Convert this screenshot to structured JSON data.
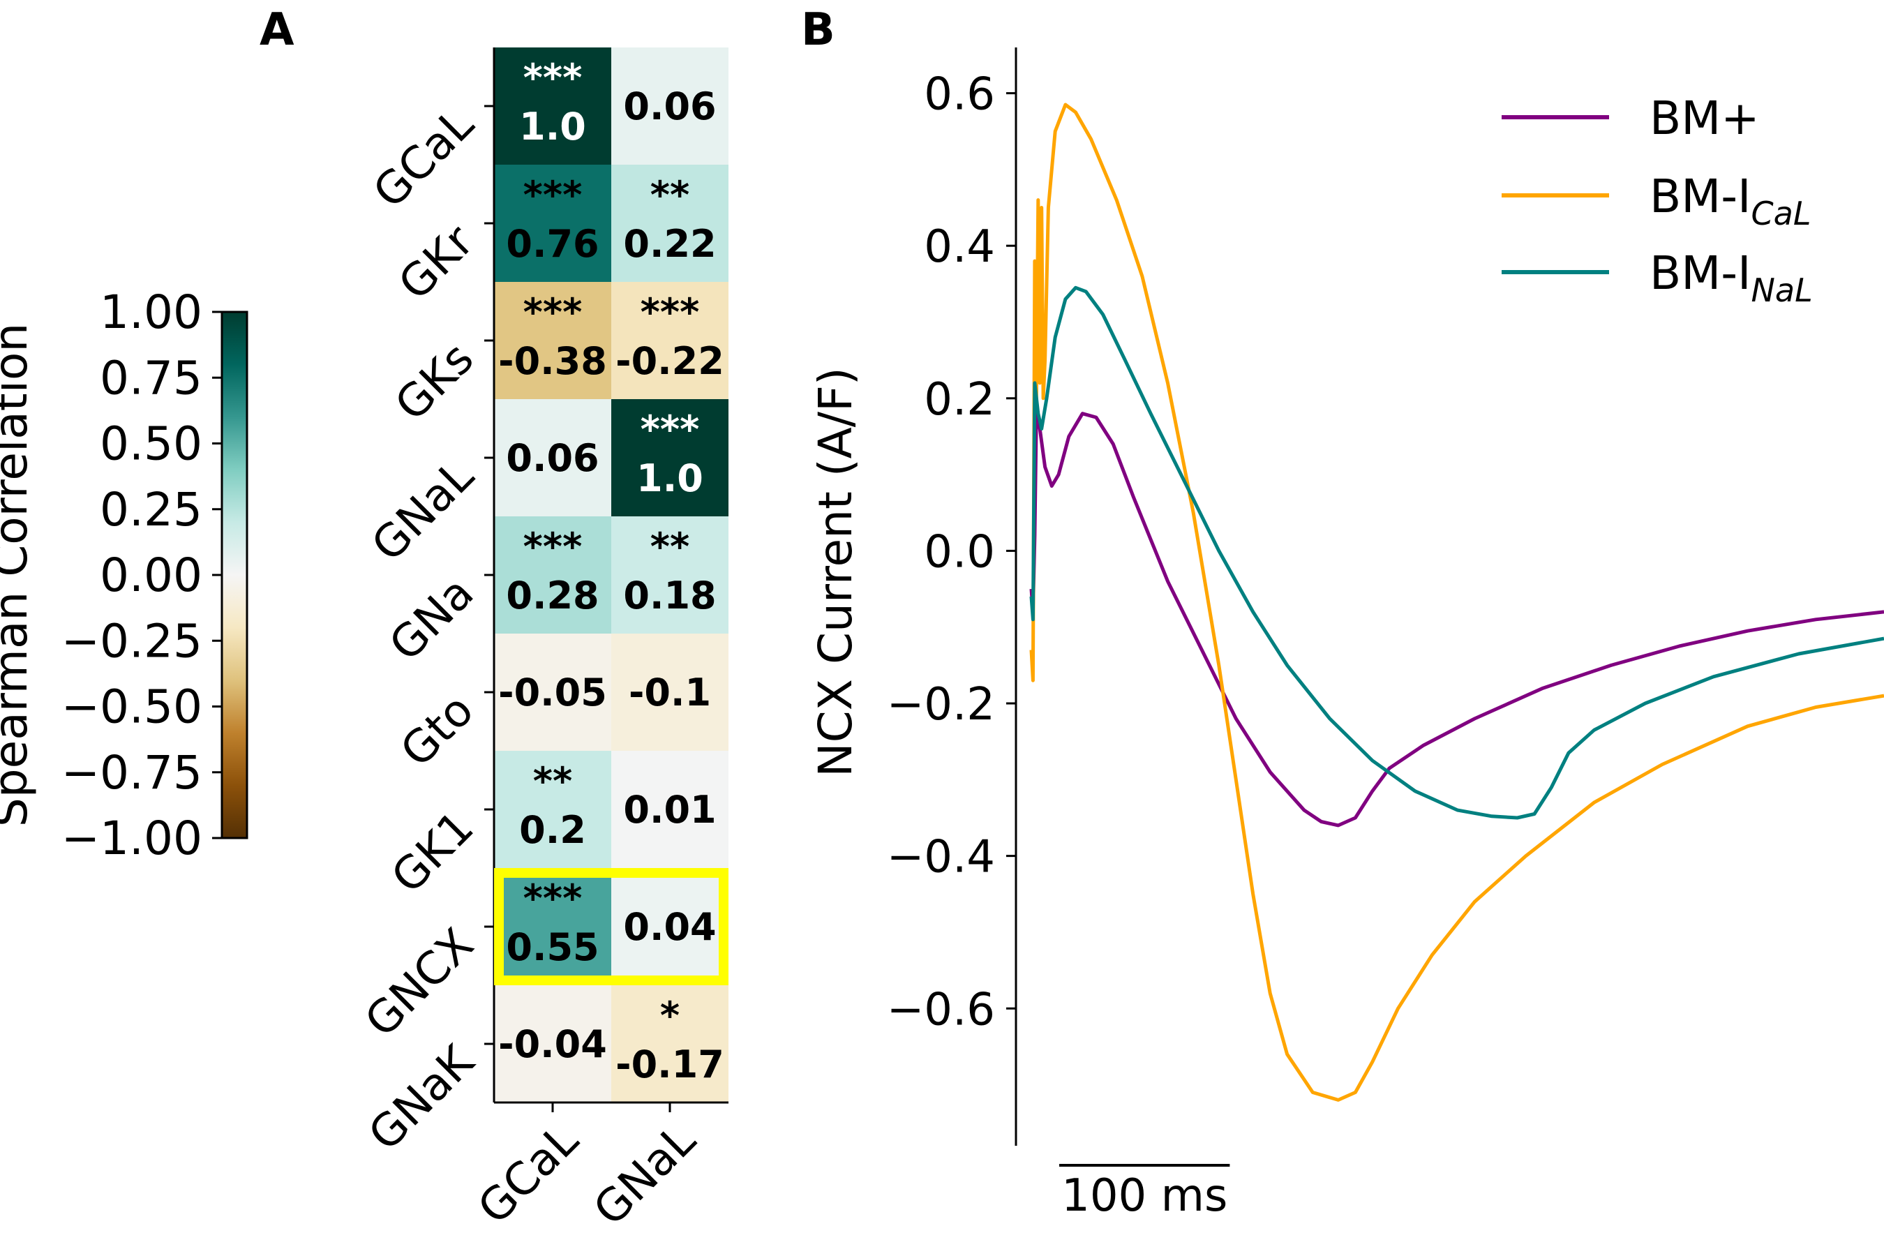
{
  "panels": {
    "a": "A",
    "b": "B"
  },
  "colors": {
    "bm_plus": "#800080",
    "bm_ical": "#FFA500",
    "bm_inal": "#008080",
    "highlight": "#FFFF00",
    "text_dark": "#000000",
    "text_light": "#FFFFFF"
  },
  "chart_data": [
    {
      "type": "heatmap",
      "colormap": "BrBG",
      "rows": [
        "GCaL",
        "GKr",
        "GKs",
        "GNaL",
        "GNa",
        "Gto",
        "GK1",
        "GNCX",
        "GNaK"
      ],
      "columns": [
        "GCaL",
        "GNaL"
      ],
      "values": [
        [
          1.0,
          0.06
        ],
        [
          0.76,
          0.22
        ],
        [
          -0.38,
          -0.22
        ],
        [
          0.06,
          1.0
        ],
        [
          0.28,
          0.18
        ],
        [
          -0.05,
          -0.1
        ],
        [
          0.2,
          0.01
        ],
        [
          0.55,
          0.04
        ],
        [
          -0.04,
          -0.17
        ]
      ],
      "labels": [
        [
          "1.0",
          "0.06"
        ],
        [
          "0.76",
          "0.22"
        ],
        [
          "-0.38",
          "-0.22"
        ],
        [
          "0.06",
          "1.0"
        ],
        [
          "0.28",
          "0.18"
        ],
        [
          "-0.05",
          "-0.1"
        ],
        [
          "0.2",
          "0.01"
        ],
        [
          "0.55",
          "0.04"
        ],
        [
          "-0.04",
          "-0.17"
        ]
      ],
      "significance": [
        [
          "***",
          ""
        ],
        [
          "***",
          "**"
        ],
        [
          "***",
          "***"
        ],
        [
          "",
          "***"
        ],
        [
          "***",
          "**"
        ],
        [
          "",
          ""
        ],
        [
          "**",
          ""
        ],
        [
          "***",
          ""
        ],
        [
          "",
          "*"
        ]
      ],
      "highlighted_row": "GNCX",
      "colorbar": {
        "label": "Spearman Correlation",
        "range": [
          -1.0,
          1.0
        ],
        "ticks": [
          "1.00",
          "0.75",
          "0.50",
          "0.25",
          "0.00",
          "−0.25",
          "−0.50",
          "−0.75",
          "−1.00"
        ]
      }
    },
    {
      "type": "line",
      "ylabel": "NCX Current (A/F)",
      "ylim": [
        -0.78,
        0.66
      ],
      "xlim": [
        0,
        500
      ],
      "yticks": [
        "0.6",
        "0.4",
        "0.2",
        "0.0",
        "−0.2",
        "−0.4",
        "−0.6"
      ],
      "scalebar": {
        "label": "100 ms",
        "length_ms": 100
      },
      "legend_position": "upper right",
      "series": [
        {
          "name": "BM+",
          "legend_main": "BM+",
          "legend_sub": "",
          "points": [
            [
              0,
              -0.05
            ],
            [
              1,
              -0.08
            ],
            [
              2,
              0.02
            ],
            [
              3,
              0.18
            ],
            [
              5,
              0.16
            ],
            [
              8,
              0.11
            ],
            [
              12,
              0.085
            ],
            [
              16,
              0.1
            ],
            [
              22,
              0.15
            ],
            [
              30,
              0.18
            ],
            [
              38,
              0.175
            ],
            [
              48,
              0.14
            ],
            [
              60,
              0.07
            ],
            [
              80,
              -0.04
            ],
            [
              100,
              -0.13
            ],
            [
              120,
              -0.22
            ],
            [
              140,
              -0.29
            ],
            [
              160,
              -0.34
            ],
            [
              170,
              -0.355
            ],
            [
              180,
              -0.36
            ],
            [
              190,
              -0.35
            ],
            [
              200,
              -0.315
            ],
            [
              210,
              -0.285
            ],
            [
              230,
              -0.255
            ],
            [
              260,
              -0.22
            ],
            [
              300,
              -0.18
            ],
            [
              340,
              -0.15
            ],
            [
              380,
              -0.125
            ],
            [
              420,
              -0.105
            ],
            [
              460,
              -0.09
            ],
            [
              500,
              -0.08
            ]
          ]
        },
        {
          "name": "BM-ICaL",
          "legend_main": "BM-I",
          "legend_sub": "CaL",
          "points": [
            [
              0,
              -0.13
            ],
            [
              1,
              -0.17
            ],
            [
              2,
              0.38
            ],
            [
              3,
              0.2
            ],
            [
              4,
              0.46
            ],
            [
              5,
              0.22
            ],
            [
              6,
              0.45
            ],
            [
              7,
              0.2
            ],
            [
              8,
              0.25
            ],
            [
              10,
              0.45
            ],
            [
              14,
              0.55
            ],
            [
              20,
              0.585
            ],
            [
              26,
              0.575
            ],
            [
              35,
              0.54
            ],
            [
              50,
              0.46
            ],
            [
              65,
              0.36
            ],
            [
              80,
              0.22
            ],
            [
              95,
              0.05
            ],
            [
              110,
              -0.15
            ],
            [
              120,
              -0.3
            ],
            [
              130,
              -0.45
            ],
            [
              140,
              -0.58
            ],
            [
              150,
              -0.66
            ],
            [
              165,
              -0.71
            ],
            [
              180,
              -0.72
            ],
            [
              190,
              -0.71
            ],
            [
              200,
              -0.67
            ],
            [
              215,
              -0.6
            ],
            [
              235,
              -0.53
            ],
            [
              260,
              -0.46
            ],
            [
              290,
              -0.4
            ],
            [
              330,
              -0.33
            ],
            [
              370,
              -0.28
            ],
            [
              420,
              -0.23
            ],
            [
              460,
              -0.205
            ],
            [
              500,
              -0.19
            ]
          ]
        },
        {
          "name": "BM-INaL",
          "legend_main": "BM-I",
          "legend_sub": "NaL",
          "points": [
            [
              0,
              -0.06
            ],
            [
              1,
              -0.09
            ],
            [
              2,
              0.22
            ],
            [
              4,
              0.18
            ],
            [
              6,
              0.16
            ],
            [
              9,
              0.2
            ],
            [
              14,
              0.28
            ],
            [
              20,
              0.33
            ],
            [
              26,
              0.345
            ],
            [
              32,
              0.34
            ],
            [
              42,
              0.31
            ],
            [
              55,
              0.25
            ],
            [
              70,
              0.18
            ],
            [
              90,
              0.09
            ],
            [
              110,
              0.0
            ],
            [
              130,
              -0.08
            ],
            [
              150,
              -0.15
            ],
            [
              175,
              -0.22
            ],
            [
              200,
              -0.275
            ],
            [
              225,
              -0.315
            ],
            [
              250,
              -0.34
            ],
            [
              270,
              -0.348
            ],
            [
              285,
              -0.35
            ],
            [
              295,
              -0.345
            ],
            [
              305,
              -0.31
            ],
            [
              315,
              -0.265
            ],
            [
              330,
              -0.235
            ],
            [
              360,
              -0.2
            ],
            [
              400,
              -0.165
            ],
            [
              450,
              -0.135
            ],
            [
              500,
              -0.115
            ]
          ]
        }
      ]
    }
  ]
}
